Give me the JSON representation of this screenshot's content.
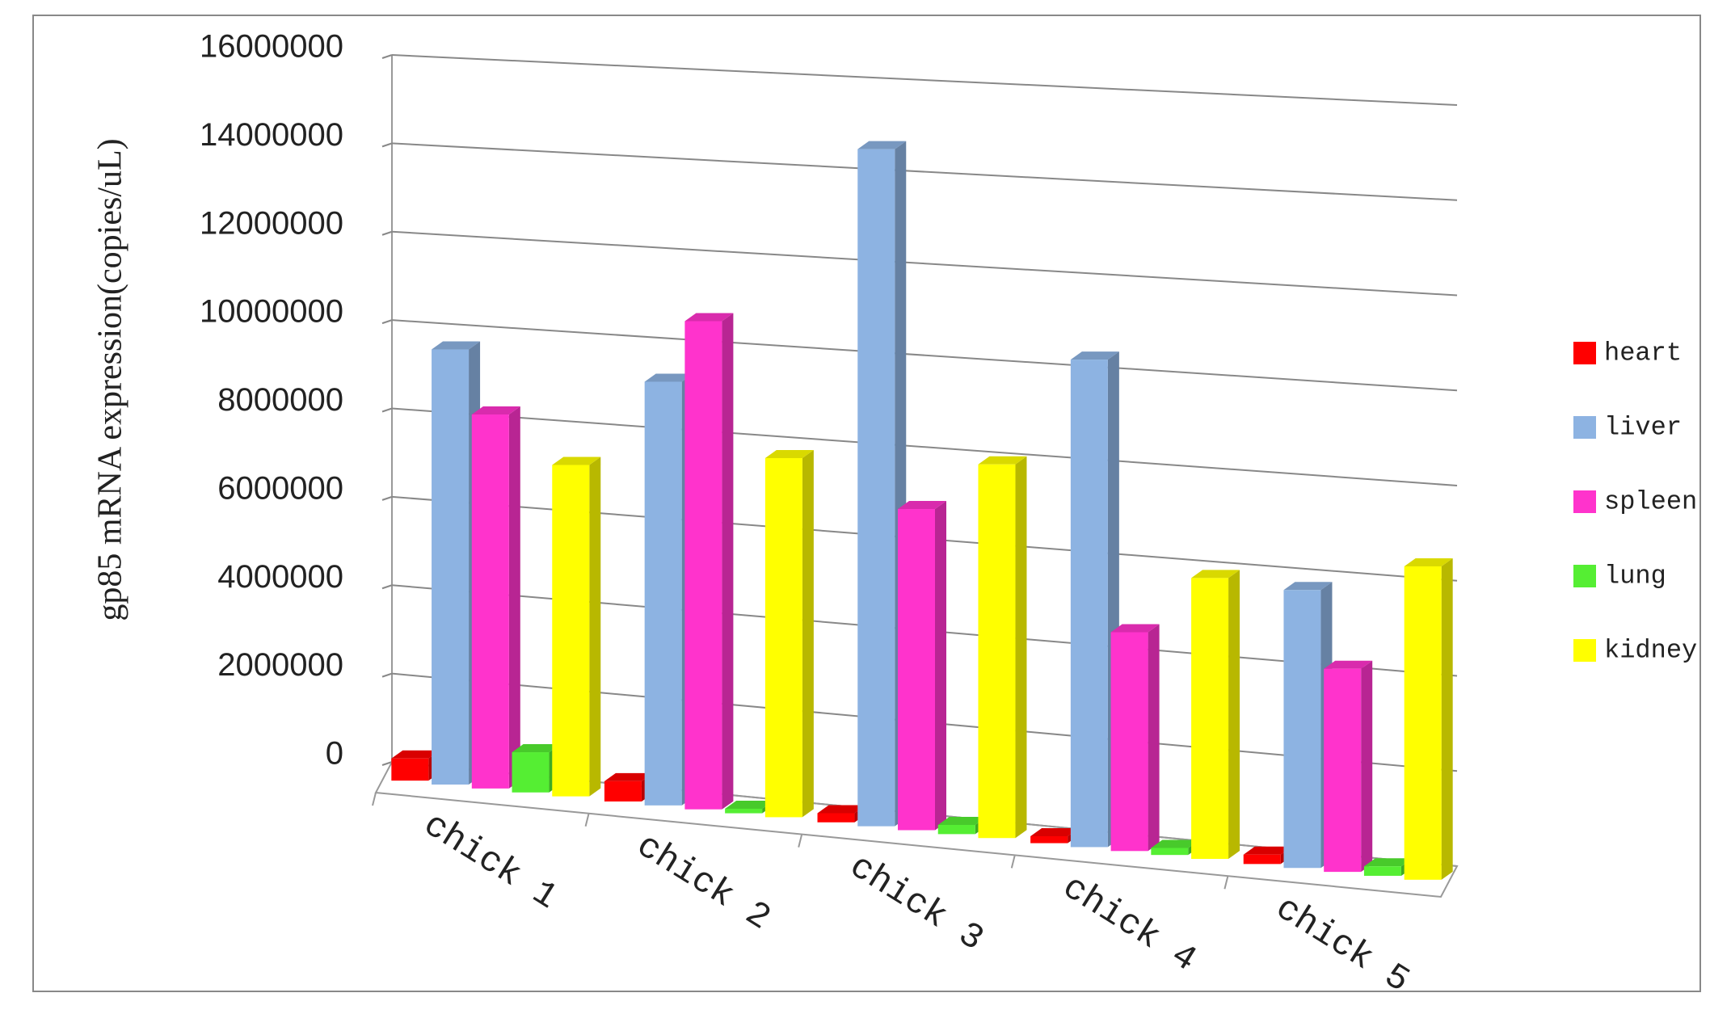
{
  "chart_data": {
    "type": "bar3d",
    "y_label": "gp85 mRNA expression(copies/uL)",
    "categories": [
      "chick 1",
      "chick 2",
      "chick 3",
      "chick 4",
      "chick 5"
    ],
    "series": [
      {
        "name": "heart",
        "color": "#ff0000",
        "values": [
          500000,
          450000,
          200000,
          150000,
          200000
        ]
      },
      {
        "name": "liver",
        "color": "#8db3e2",
        "values": [
          9800000,
          9400000,
          14800000,
          10500000,
          5900000
        ]
      },
      {
        "name": "spleen",
        "color": "#ff33cc",
        "values": [
          8400000,
          10800000,
          7000000,
          4700000,
          4300000
        ]
      },
      {
        "name": "lung",
        "color": "#55ee33",
        "values": [
          900000,
          100000,
          200000,
          150000,
          200000
        ]
      },
      {
        "name": "kidney",
        "color": "#ffff00",
        "values": [
          7400000,
          7900000,
          8100000,
          6000000,
          6600000
        ]
      }
    ],
    "ylim": [
      0,
      16000000
    ],
    "yticks": [
      0,
      2000000,
      4000000,
      6000000,
      8000000,
      10000000,
      12000000,
      14000000,
      16000000
    ],
    "grid": true,
    "legend": "right"
  }
}
